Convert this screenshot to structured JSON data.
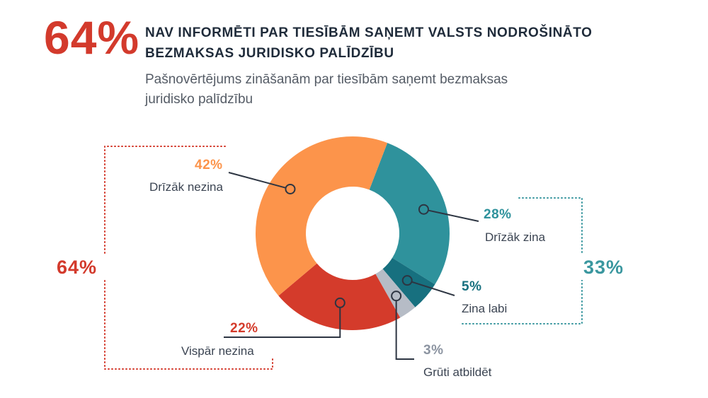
{
  "header": {
    "big_percent": "64%",
    "title": "NAV INFORMĒTI PAR TIESĪBĀM SAŅEMT VALSTS NODROŠINĀTO BEZMAKSAS JURIDISKO PALĪDZĪBU",
    "subtitle": "Pašnovērtējums zināšanām par tiesībām saņemt bezmaksas juridisko palīdzību"
  },
  "chart_data": {
    "type": "pie",
    "donut": true,
    "title": "Pašnovērtējums zināšanām par tiesībām saņemt bezmaksas juridisko palīdzību",
    "slices": [
      {
        "label": "Drīzāk zina",
        "value": 28,
        "display": "28%",
        "color": "#2f929c"
      },
      {
        "label": "Zina labi",
        "value": 5,
        "display": "5%",
        "color": "#17707f"
      },
      {
        "label": "Grūti atbildēt",
        "value": 3,
        "display": "3%",
        "color": "#b6bcc6"
      },
      {
        "label": "Vispār nezina",
        "value": 22,
        "display": "22%",
        "color": "#d43b2b"
      },
      {
        "label": "Drīzāk nezina",
        "value": 42,
        "display": "42%",
        "color": "#fc944b"
      }
    ],
    "groups": [
      {
        "display": "64%",
        "members": [
          "Drīzāk nezina",
          "Vispār nezina"
        ],
        "color": "#d33a2c"
      },
      {
        "display": "33%",
        "members": [
          "Drīzāk zina",
          "Zina labi"
        ],
        "color": "#3a979f"
      }
    ]
  },
  "colors": {
    "accent_red": "#d33a2c",
    "accent_teal": "#3a979f",
    "title_text": "#1f2b3a",
    "subtitle_text": "#555c66"
  }
}
